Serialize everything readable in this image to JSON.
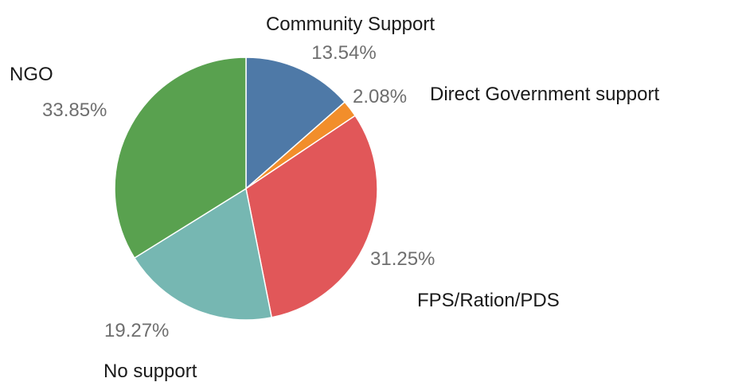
{
  "chart_data": {
    "type": "pie",
    "legend": "none",
    "slices": [
      {
        "name": "Community Support",
        "value": 13.54,
        "label": "13.54%",
        "color": "#4e79a7"
      },
      {
        "name": "Direct Government support",
        "value": 2.08,
        "label": "2.08%",
        "color": "#f28e2b"
      },
      {
        "name": "FPS/Ration/PDS",
        "value": 31.25,
        "label": "31.25%",
        "color": "#e15759"
      },
      {
        "name": "No support",
        "value": 19.27,
        "label": "19.27%",
        "color": "#76b7b2"
      },
      {
        "name": "NGO",
        "value": 33.85,
        "label": "33.85%",
        "color": "#59a14f"
      }
    ]
  }
}
